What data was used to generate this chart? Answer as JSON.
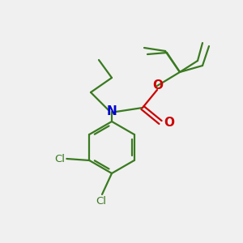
{
  "background_color": "#f0f0f0",
  "bond_color": "#3a7a20",
  "nitrogen_color": "#0000cc",
  "oxygen_color": "#cc0000",
  "chlorine_color": "#3a7a20",
  "label_cl": "Cl",
  "label_n": "N",
  "label_o_single": "O",
  "label_o_double": "O",
  "figsize": [
    3.0,
    3.0
  ],
  "dpi": 100,
  "bond_lw": 1.6
}
